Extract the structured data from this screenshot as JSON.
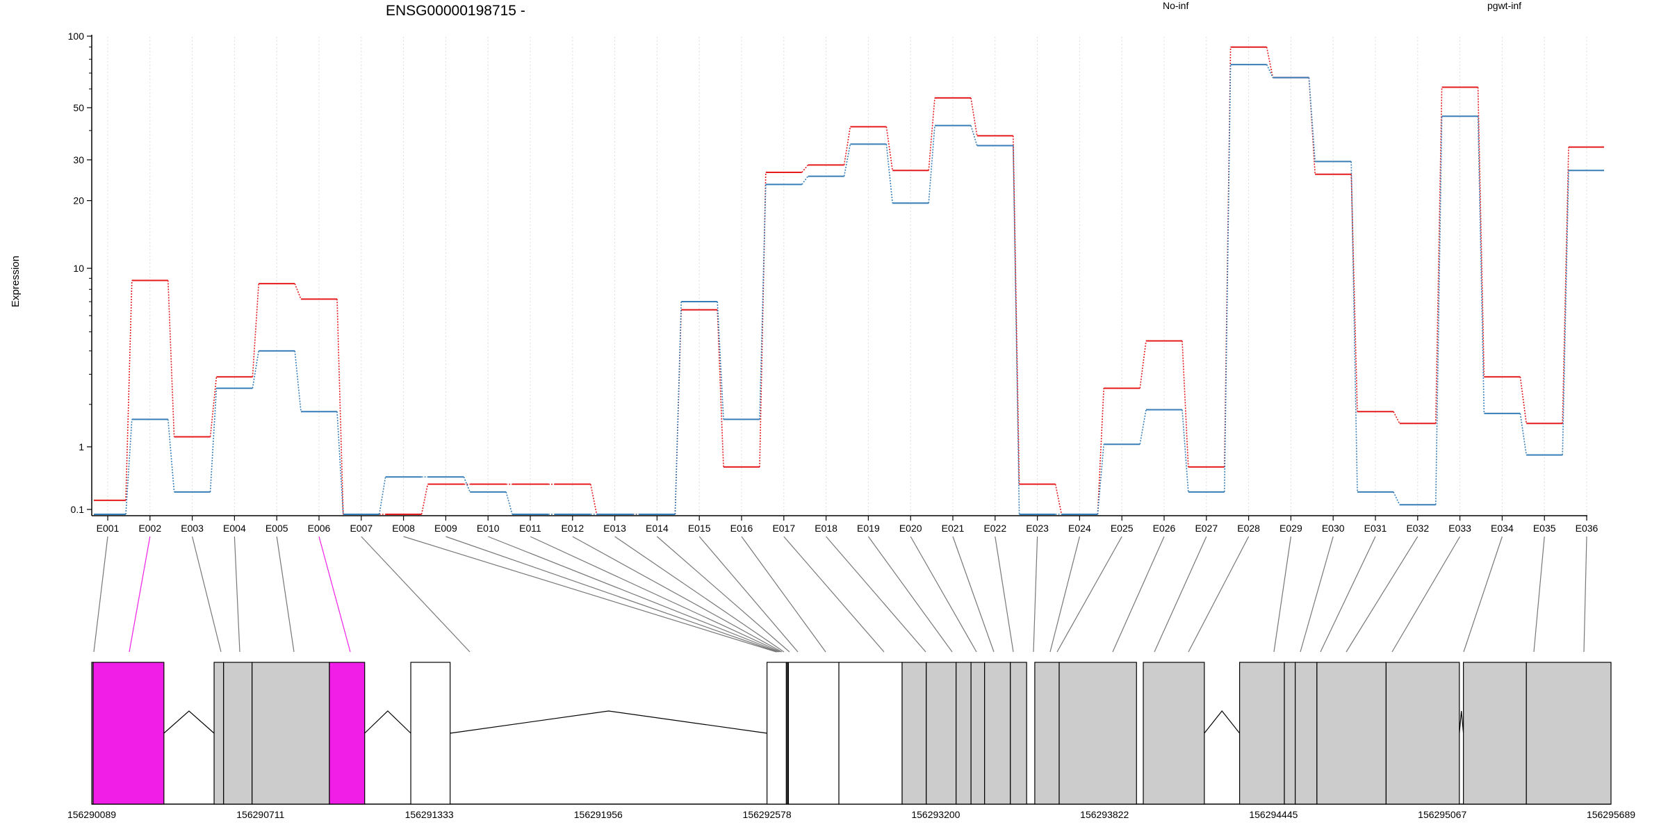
{
  "chart_data": {
    "type": "line",
    "title": "ENSG00000198715 -",
    "xlabel": "",
    "ylabel": "Expression",
    "y_scale": "log (offset)",
    "y_ticks": [
      "0.1",
      "1",
      "10",
      "20",
      "30",
      "50",
      "100"
    ],
    "y_tick_values": [
      0.1,
      1,
      10,
      20,
      30,
      50,
      100
    ],
    "grid": "vertical dotted lines at each exon",
    "legend": "top-right, text only",
    "categories": [
      "E001",
      "E002",
      "E003",
      "E004",
      "E005",
      "E006",
      "E007",
      "E008",
      "E009",
      "E010",
      "E011",
      "E012",
      "E013",
      "E014",
      "E015",
      "E016",
      "E017",
      "E018",
      "E019",
      "E020",
      "E021",
      "E022",
      "E023",
      "E024",
      "E025",
      "E026",
      "E027",
      "E028",
      "E029",
      "E030",
      "E031",
      "E032",
      "E033",
      "E034",
      "E035",
      "E036"
    ],
    "series": [
      {
        "name": "No-inf",
        "color": "#e41a1c",
        "values": [
          0.2,
          8.8,
          1.2,
          2.9,
          8.5,
          7.2,
          0.05,
          0.05,
          0.4,
          0.4,
          0.4,
          0.4,
          0.05,
          0.05,
          6.4,
          0.65,
          26.5,
          28.5,
          41.5,
          27,
          55,
          38,
          0.4,
          0.05,
          2.5,
          4.5,
          0.65,
          90,
          67,
          26,
          1.8,
          1.5,
          61,
          2.9,
          1.5,
          34
        ]
      },
      {
        "name": "pgwt-inf",
        "color": "#377eb8",
        "values": [
          0.05,
          1.6,
          0.3,
          2.5,
          4.0,
          1.8,
          0.05,
          0.5,
          0.5,
          0.3,
          0.05,
          0.05,
          0.05,
          0.05,
          7.0,
          1.6,
          23.5,
          25.5,
          35,
          19.5,
          42,
          34.5,
          0.05,
          0.05,
          1.05,
          1.85,
          0.3,
          76,
          67,
          29.5,
          0.3,
          0.15,
          46,
          1.75,
          0.85,
          27
        ]
      }
    ],
    "highlighted_exons": [
      "E002",
      "E006"
    ],
    "highlight_color": "#f01ee6",
    "gene_model": {
      "coordinate_ticks": [
        "156290089",
        "156290711",
        "156291333",
        "156291956",
        "156292578",
        "156293200",
        "156293822",
        "156294445",
        "156295067",
        "156295689"
      ],
      "coordinate_values": [
        156290089,
        156290711,
        156291333,
        156291956,
        156292578,
        156293200,
        156293822,
        156294445,
        156295067,
        156295689
      ],
      "exon_fill_expressed": "#cccccc",
      "exon_fill_unexpressed": "#ffffff"
    }
  }
}
